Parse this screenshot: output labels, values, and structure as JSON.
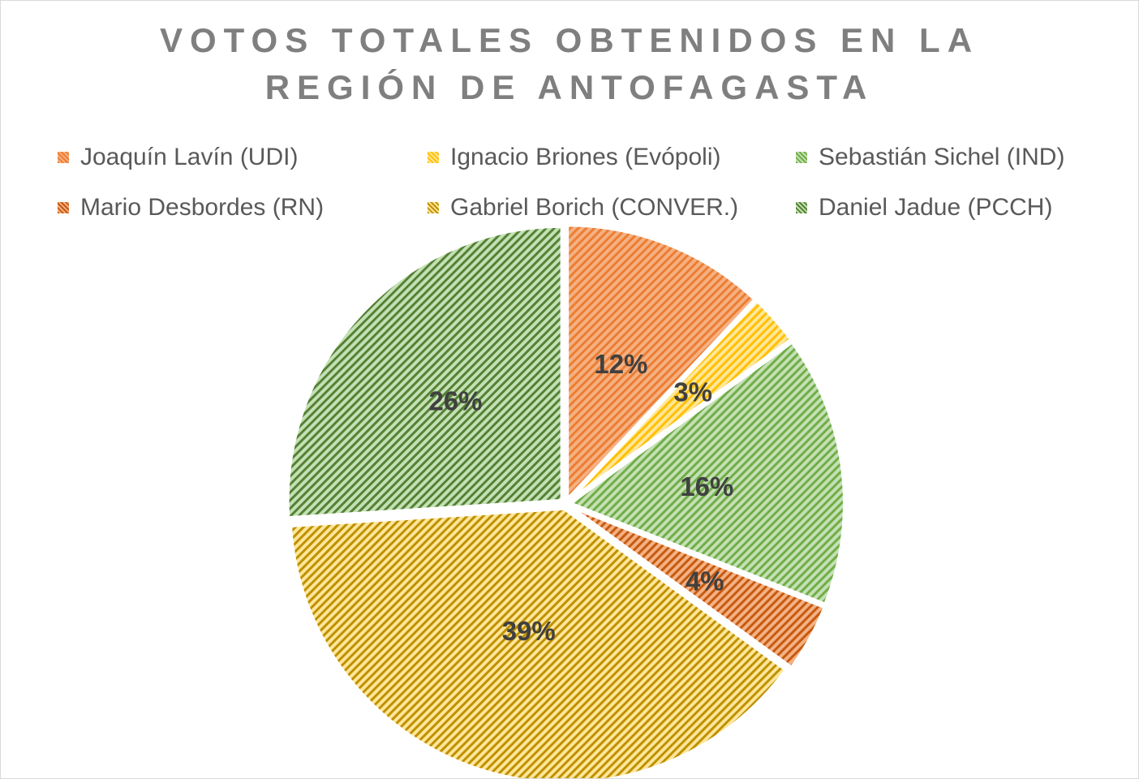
{
  "chart_data": {
    "type": "pie",
    "title_lines": [
      "VOTOS TOTALES OBTENIDOS EN LA",
      "REGIÓN DE ANTOFAGASTA"
    ],
    "legend_position": "top",
    "slices": [
      {
        "name": "Joaquín Lavín (UDI)",
        "value": 12,
        "label": "12%",
        "color": "#f4b183",
        "stripe": "#ed7d31"
      },
      {
        "name": "Ignacio Briones (Evópoli)",
        "value": 3,
        "label": "3%",
        "color": "#ffe699",
        "stripe": "#ffc000"
      },
      {
        "name": "Sebastián Sichel (IND)",
        "value": 16,
        "label": "16%",
        "color": "#c5e0b4",
        "stripe": "#70ad47"
      },
      {
        "name": "Mario Desbordes (RN)",
        "value": 4,
        "label": "4%",
        "color": "#f4b183",
        "stripe": "#c55a11"
      },
      {
        "name": "Gabriel Borich (CONVER.)",
        "value": 39,
        "label": "39%",
        "color": "#ffe699",
        "stripe": "#bf9000"
      },
      {
        "name": "Daniel Jadue (PCCH)",
        "value": 26,
        "label": "26%",
        "color": "#c5e0b4",
        "stripe": "#548235"
      }
    ]
  }
}
